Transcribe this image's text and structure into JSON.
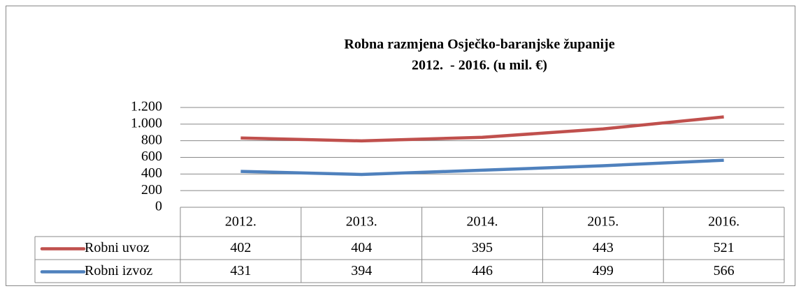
{
  "chart_data": {
    "type": "line",
    "stacked": true,
    "title": "Robna razmjena Osječko-baranjske županije",
    "subtitle": "2012.  - 2016. (u mil. €)",
    "categories": [
      "2012.",
      "2013.",
      "2014.",
      "2015.",
      "2016."
    ],
    "series": [
      {
        "name": "Robni uvoz",
        "color": "#c0504d",
        "values": [
          402,
          404,
          395,
          443,
          521
        ]
      },
      {
        "name": "Robni izvoz",
        "color": "#4f81bd",
        "values": [
          431,
          394,
          446,
          499,
          566
        ]
      }
    ],
    "ylim": [
      0,
      1200
    ],
    "yticks": [
      0,
      200,
      400,
      600,
      800,
      {
        "value": 1000,
        "label": "1.000"
      },
      {
        "value": 1200,
        "label": "1.200"
      }
    ],
    "grid": true,
    "data_table": true
  }
}
